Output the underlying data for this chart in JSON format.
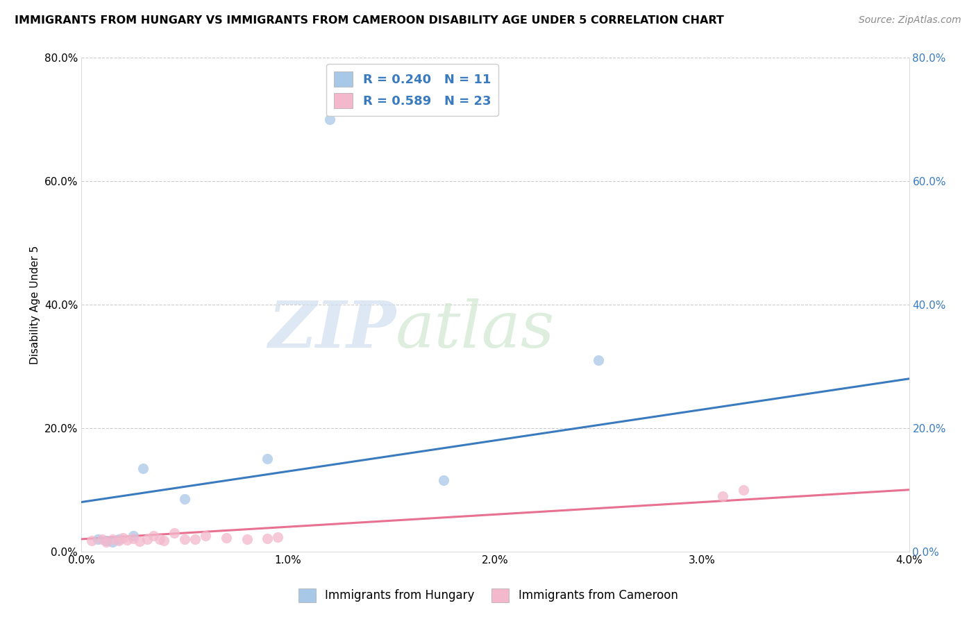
{
  "title": "IMMIGRANTS FROM HUNGARY VS IMMIGRANTS FROM CAMEROON DISABILITY AGE UNDER 5 CORRELATION CHART",
  "source": "Source: ZipAtlas.com",
  "ylabel": "Disability Age Under 5",
  "xlim": [
    0.0,
    0.04
  ],
  "ylim": [
    0.0,
    0.8
  ],
  "xticks": [
    0.0,
    0.01,
    0.02,
    0.03,
    0.04
  ],
  "xtick_labels": [
    "0.0%",
    "1.0%",
    "2.0%",
    "3.0%",
    "4.0%"
  ],
  "yticks": [
    0.0,
    0.2,
    0.4,
    0.6,
    0.8
  ],
  "ytick_labels": [
    "0.0%",
    "20.0%",
    "40.0%",
    "60.0%",
    "80.0%"
  ],
  "hungary_color": "#a8c8e8",
  "cameroon_color": "#f4b8cc",
  "hungary_line_color": "#3a7bbf",
  "cameroon_line_color": "#e87090",
  "hungary_R": 0.24,
  "hungary_N": 11,
  "cameroon_R": 0.589,
  "cameroon_N": 23,
  "hungary_points_x": [
    0.003,
    0.009,
    0.012,
    0.005,
    0.0018,
    0.0012,
    0.0008,
    0.0015,
    0.0175,
    0.025,
    0.0025
  ],
  "hungary_points_y": [
    0.135,
    0.15,
    0.7,
    0.085,
    0.02,
    0.018,
    0.02,
    0.015,
    0.115,
    0.31,
    0.025
  ],
  "cameroon_points_x": [
    0.0005,
    0.001,
    0.0012,
    0.0015,
    0.0018,
    0.002,
    0.0022,
    0.0025,
    0.0028,
    0.0032,
    0.0035,
    0.0038,
    0.004,
    0.0045,
    0.005,
    0.0055,
    0.006,
    0.007,
    0.008,
    0.009,
    0.0095,
    0.031,
    0.032
  ],
  "cameroon_points_y": [
    0.018,
    0.02,
    0.015,
    0.02,
    0.018,
    0.022,
    0.019,
    0.021,
    0.016,
    0.02,
    0.025,
    0.02,
    0.018,
    0.03,
    0.02,
    0.02,
    0.025,
    0.022,
    0.02,
    0.021,
    0.023,
    0.09,
    0.1
  ],
  "hungary_trend_x": [
    0.0,
    0.04
  ],
  "hungary_trend_y": [
    0.08,
    0.28
  ],
  "cameroon_trend_x": [
    0.0,
    0.04
  ],
  "cameroon_trend_y": [
    0.02,
    0.1
  ],
  "watermark_zip": "ZIP",
  "watermark_atlas": "atlas",
  "background_color": "#ffffff",
  "grid_color": "#cccccc",
  "legend_labels": [
    "Immigrants from Hungary",
    "Immigrants from Cameroon"
  ],
  "right_tick_color": "#3a7bbf"
}
